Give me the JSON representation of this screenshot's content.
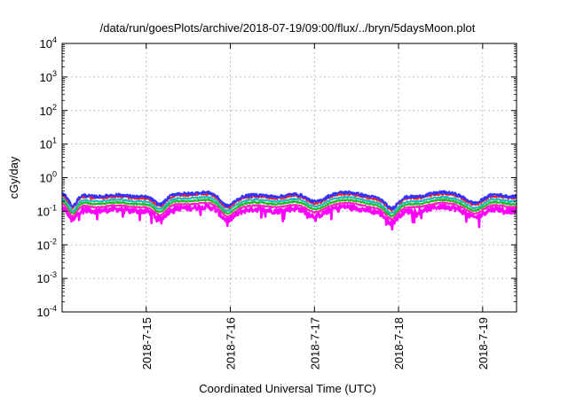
{
  "chart_data": {
    "type": "line",
    "title": "/data/run/goesPlots/archive/2018-07-19/09:00/flux/../bryn/5daysMoon.plot",
    "xlabel": "Coordinated Universal Time (UTC)",
    "ylabel": "cGy/day",
    "yscale": "log",
    "ylim": [
      0.0001,
      10000
    ],
    "y_ticks": [
      {
        "base": "10",
        "exp": "-4"
      },
      {
        "base": "10",
        "exp": "-3"
      },
      {
        "base": "10",
        "exp": "-2"
      },
      {
        "base": "10",
        "exp": "-1"
      },
      {
        "base": "10",
        "exp": "0"
      },
      {
        "base": "10",
        "exp": "1"
      },
      {
        "base": "10",
        "exp": "2"
      },
      {
        "base": "10",
        "exp": "3"
      },
      {
        "base": "10",
        "exp": "4"
      }
    ],
    "xlim": [
      "2018-07-14T00:00",
      "2018-07-19T09:40"
    ],
    "x_ticks": [
      {
        "label": "2018-7-15",
        "date": "2018-07-15T00:00"
      },
      {
        "label": "2018-7-16",
        "date": "2018-07-16T00:00"
      },
      {
        "label": "2018-7-17",
        "date": "2018-07-17T00:00"
      },
      {
        "label": "2018-7-18",
        "date": "2018-07-18T00:00"
      },
      {
        "label": "2018-7-19",
        "date": "2018-07-19T00:00"
      }
    ],
    "grid": true,
    "legend": "none",
    "series": [
      {
        "color": "#3333ff",
        "base": 0.32,
        "noise": 0.2,
        "min": 0.3
      },
      {
        "color": "#ff2222",
        "base": 0.29,
        "noise": 0.16,
        "min": 0.3
      },
      {
        "color": "#22bbbb",
        "base": 0.23,
        "noise": 0.1,
        "min": 0.35
      },
      {
        "color": "#22bb22",
        "base": 0.19,
        "noise": 0.08,
        "min": 0.4
      },
      {
        "color": "#ff22bb",
        "base": 0.155,
        "noise": 0.08,
        "min": 0.45
      },
      {
        "color": "#ff00ff",
        "base": 0.12,
        "noise": 0.35,
        "min": 0.3
      }
    ],
    "dips": [
      {
        "date": "2018-07-14T03:00",
        "width_hours": 2,
        "depth": 0.6
      },
      {
        "date": "2018-07-15T04:00",
        "width_hours": 3,
        "depth": 0.55
      },
      {
        "date": "2018-07-15T23:00",
        "width_hours": 3,
        "depth": 0.5
      },
      {
        "date": "2018-07-17T00:00",
        "width_hours": 4,
        "depth": 0.45
      },
      {
        "date": "2018-07-17T22:00",
        "width_hours": 3,
        "depth": 0.6
      },
      {
        "date": "2018-07-18T22:00",
        "width_hours": 4,
        "depth": 0.5
      }
    ]
  }
}
